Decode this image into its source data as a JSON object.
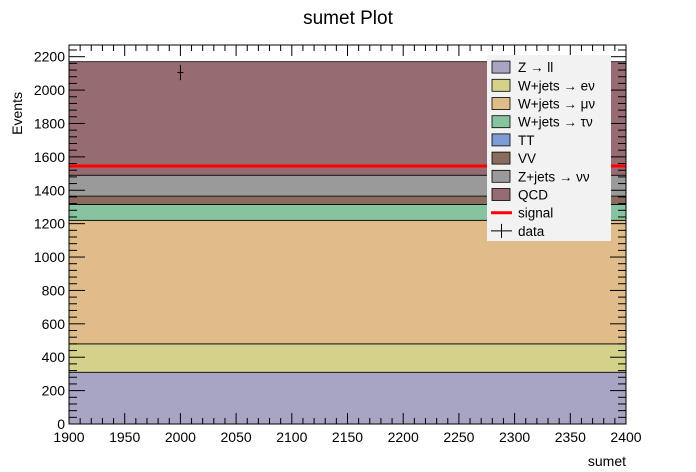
{
  "chart_data": {
    "type": "bar",
    "stacked": true,
    "title": "sumet Plot",
    "xlabel": "sumet",
    "ylabel": "Events",
    "xlim": [
      1900,
      2400
    ],
    "ylim": [
      0,
      2270
    ],
    "x_ticks": [
      1900,
      1950,
      2000,
      2050,
      2100,
      2150,
      2200,
      2250,
      2300,
      2350,
      2400
    ],
    "y_ticks": [
      0,
      200,
      400,
      600,
      800,
      1000,
      1200,
      1400,
      1600,
      1800,
      2000,
      2200
    ],
    "bin_range": [
      1900,
      2400
    ],
    "series": [
      {
        "name": "Z → ll",
        "value": 310,
        "color": "#a8a4c4"
      },
      {
        "name": "W+jets → eν",
        "value": 170,
        "color": "#d3d18a"
      },
      {
        "name": "W+jets → μν",
        "value": 740,
        "color": "#e0bc8a"
      },
      {
        "name": "W+jets → τν",
        "value": 95,
        "color": "#88c3a0"
      },
      {
        "name": "TT",
        "value": 0,
        "color": "#7e9cd6"
      },
      {
        "name": "VV",
        "value": 50,
        "color": "#8a6c5e"
      },
      {
        "name": "Z+jets → νν",
        "value": 125,
        "color": "#9a9a9a"
      },
      {
        "name": "QCD",
        "value": 680,
        "color": "#976b72"
      }
    ],
    "signal": {
      "name": "signal",
      "value": 1545,
      "color": "#ff0000"
    },
    "data": {
      "name": "data",
      "x": 2000,
      "y": 2105,
      "yerr": 46,
      "xerr": 0
    },
    "legend": {
      "position": "top-right",
      "entries": [
        {
          "label": "Z → ll",
          "style": "box",
          "color": "#a8a4c4"
        },
        {
          "label": "W+jets → eν",
          "style": "box",
          "color": "#d3d18a"
        },
        {
          "label": "W+jets → μν",
          "style": "box",
          "color": "#e0bc8a"
        },
        {
          "label": "W+jets → τν",
          "style": "box",
          "color": "#88c3a0"
        },
        {
          "label": "TT",
          "style": "box",
          "color": "#7e9cd6"
        },
        {
          "label": "VV",
          "style": "box",
          "color": "#8a6c5e"
        },
        {
          "label": "Z+jets → νν",
          "style": "box",
          "color": "#9a9a9a"
        },
        {
          "label": "QCD",
          "style": "box",
          "color": "#976b72"
        },
        {
          "label": "signal",
          "style": "line",
          "color": "#ff0000"
        },
        {
          "label": "data",
          "style": "marker",
          "color": "#000000"
        }
      ]
    }
  }
}
